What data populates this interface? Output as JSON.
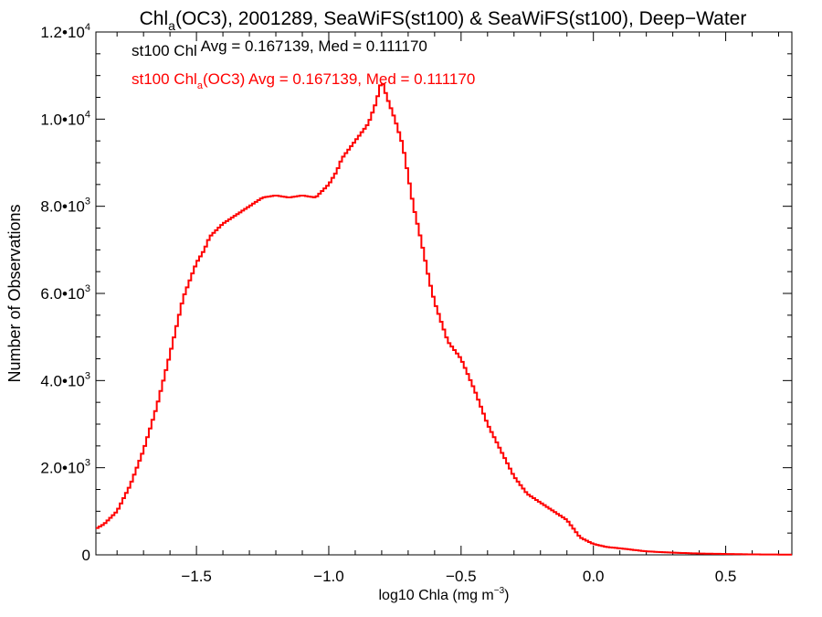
{
  "chart_data": {
    "type": "line",
    "title": {
      "pre": "Chl",
      "sub": "a",
      "post": "(OC3), 2001289, SeaWiFS(st100) & SeaWiFS(st100), Deep−Water"
    },
    "xlabel": {
      "pre": "log10 Chla (mg m",
      "sup": "−3",
      "post": ")"
    },
    "ylabel": "Number of Observations",
    "xlim": [
      -1.88,
      0.75
    ],
    "ylim": [
      0,
      12000
    ],
    "x_ticks": [
      {
        "value": -1.5,
        "label": "−1.5"
      },
      {
        "value": -1.0,
        "label": "−1.0"
      },
      {
        "value": -0.5,
        "label": "−0.5"
      },
      {
        "value": 0.0,
        "label": "0.0"
      },
      {
        "value": 0.5,
        "label": "0.5"
      }
    ],
    "y_ticks": [
      {
        "value": 0,
        "mant": "0",
        "exp": ""
      },
      {
        "value": 2000,
        "mant": "2.0•10",
        "exp": "3"
      },
      {
        "value": 4000,
        "mant": "4.0•10",
        "exp": "3"
      },
      {
        "value": 6000,
        "mant": "6.0•10",
        "exp": "3"
      },
      {
        "value": 8000,
        "mant": "8.0•10",
        "exp": "3"
      },
      {
        "value": 10000,
        "mant": "1.0•10",
        "exp": "4"
      },
      {
        "value": 12000,
        "mant": "1.2•10",
        "exp": "4"
      }
    ],
    "annotations": [
      {
        "pre": "st100 Chl",
        "sub": "",
        "post": " Avg = 0.167139, Med = 0.111170",
        "color": "#000000",
        "rawtext": "st100 Chl(OC3) Avg = 0.167139, Med = 0.111170"
      },
      {
        "pre": "st100 Chl",
        "sub": "a",
        "post": "(OC3) Avg = 0.167139, Med = 0.111170",
        "color": "#ff0000"
      }
    ],
    "grid": false,
    "legend": "none",
    "series": [
      {
        "color": "#ff0000",
        "x": [
          -1.88,
          -1.85,
          -1.8,
          -1.75,
          -1.7,
          -1.65,
          -1.6,
          -1.55,
          -1.5,
          -1.47,
          -1.45,
          -1.4,
          -1.35,
          -1.3,
          -1.25,
          -1.2,
          -1.15,
          -1.1,
          -1.05,
          -1.0,
          -0.97,
          -0.95,
          -0.9,
          -0.85,
          -0.82,
          -0.8,
          -0.78,
          -0.75,
          -0.72,
          -0.7,
          -0.68,
          -0.65,
          -0.62,
          -0.6,
          -0.55,
          -0.5,
          -0.45,
          -0.4,
          -0.35,
          -0.3,
          -0.25,
          -0.2,
          -0.15,
          -0.1,
          -0.05,
          0.0,
          0.05,
          0.1,
          0.2,
          0.3,
          0.4,
          0.5,
          0.6,
          0.75
        ],
        "y": [
          600,
          700,
          1000,
          1600,
          2400,
          3400,
          4600,
          5900,
          6700,
          7000,
          7300,
          7600,
          7800,
          8000,
          8200,
          8250,
          8200,
          8250,
          8200,
          8500,
          8800,
          9100,
          9500,
          9900,
          10400,
          10900,
          10500,
          10000,
          9400,
          8700,
          8000,
          7200,
          6300,
          5800,
          4900,
          4500,
          3800,
          3000,
          2400,
          1800,
          1400,
          1200,
          1000,
          800,
          400,
          250,
          180,
          150,
          80,
          50,
          30,
          20,
          10,
          5
        ]
      }
    ]
  }
}
